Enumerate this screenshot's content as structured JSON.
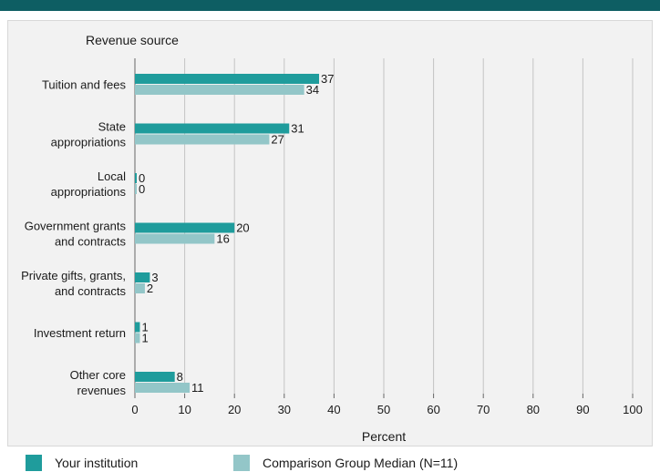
{
  "chart_data": {
    "type": "bar",
    "orientation": "horizontal",
    "title": "Revenue source",
    "xlabel": "Percent",
    "xlim": [
      0,
      100
    ],
    "x_ticks": [
      0,
      10,
      20,
      30,
      40,
      50,
      60,
      70,
      80,
      90,
      100
    ],
    "grid": true,
    "categories": [
      [
        "Tuition and fees"
      ],
      [
        "State",
        "appropriations"
      ],
      [
        "Local",
        "appropriations"
      ],
      [
        "Government grants",
        "and contracts"
      ],
      [
        "Private gifts, grants,",
        "and contracts"
      ],
      [
        "Investment return"
      ],
      [
        "Other core",
        "revenues"
      ]
    ],
    "series": [
      {
        "name": "Your institution",
        "color": "#1f9c9c",
        "values": [
          37,
          31,
          0,
          20,
          3,
          1,
          8
        ]
      },
      {
        "name": "Comparison Group Median (N=11)",
        "color": "#93c6c8",
        "values": [
          34,
          27,
          0,
          16,
          2,
          1,
          11
        ]
      }
    ],
    "legend_position": "bottom"
  },
  "colors": {
    "header_bar": "#0e5e63",
    "panel": "#f2f2f2"
  }
}
